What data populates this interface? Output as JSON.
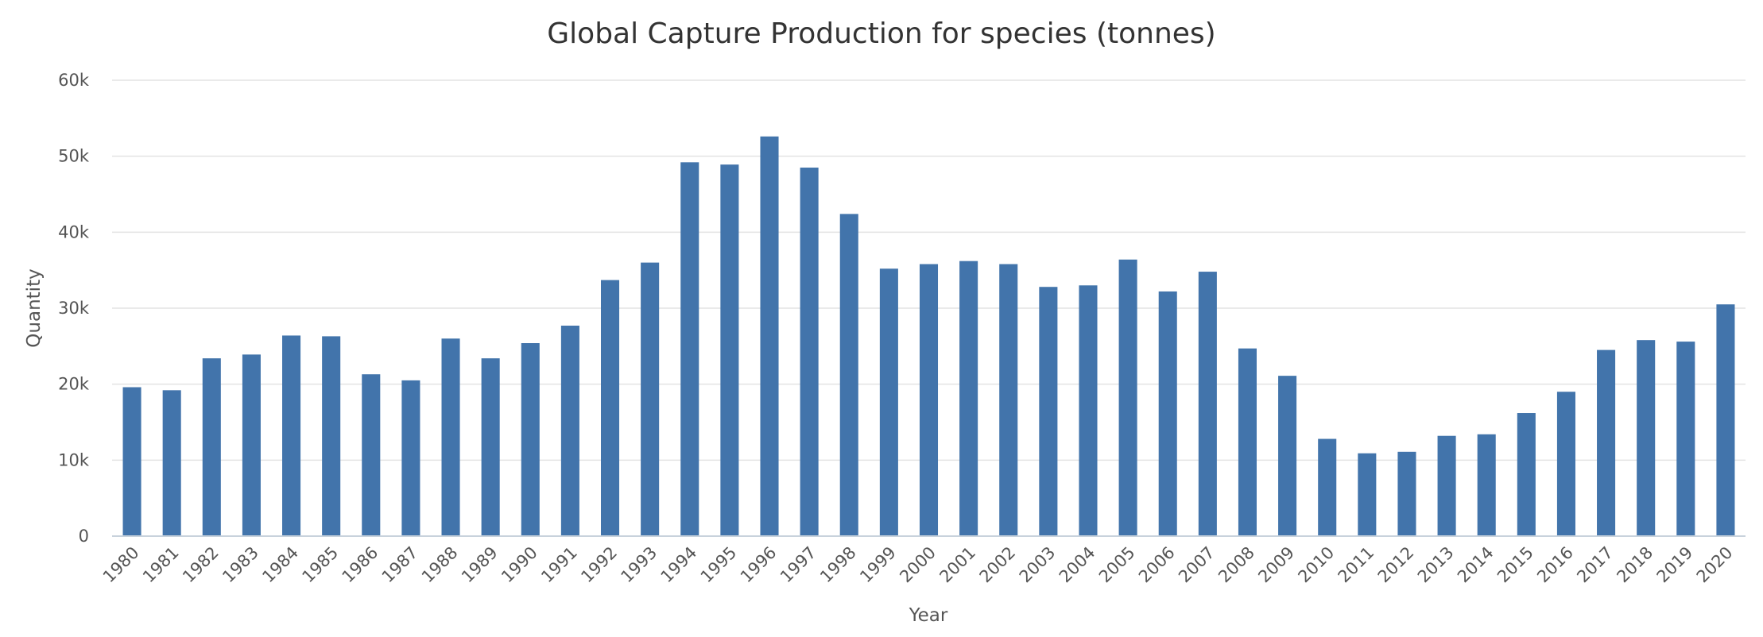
{
  "chart_data": {
    "type": "bar",
    "title": "Global Capture Production for species (tonnes)",
    "xlabel": "Year",
    "ylabel": "Quantity",
    "ylim": [
      0,
      60000
    ],
    "y_ticks": [
      {
        "value": 0,
        "label": "0"
      },
      {
        "value": 10000,
        "label": "10k"
      },
      {
        "value": 20000,
        "label": "20k"
      },
      {
        "value": 30000,
        "label": "30k"
      },
      {
        "value": 40000,
        "label": "40k"
      },
      {
        "value": 50000,
        "label": "50k"
      },
      {
        "value": 60000,
        "label": "60k"
      }
    ],
    "grid": true,
    "bar_color": "#4274ab",
    "categories": [
      "1980",
      "1981",
      "1982",
      "1983",
      "1984",
      "1985",
      "1986",
      "1987",
      "1988",
      "1989",
      "1990",
      "1991",
      "1992",
      "1993",
      "1994",
      "1995",
      "1996",
      "1997",
      "1998",
      "1999",
      "2000",
      "2001",
      "2002",
      "2003",
      "2004",
      "2005",
      "2006",
      "2007",
      "2008",
      "2009",
      "2010",
      "2011",
      "2012",
      "2013",
      "2014",
      "2015",
      "2016",
      "2017",
      "2018",
      "2019",
      "2020"
    ],
    "values": [
      19600,
      19200,
      23400,
      23900,
      26400,
      26300,
      21300,
      20500,
      26000,
      23400,
      25400,
      27700,
      33700,
      36000,
      49200,
      48900,
      52600,
      48500,
      42400,
      35200,
      35800,
      36200,
      35800,
      32800,
      33000,
      36400,
      32200,
      34800,
      24700,
      21100,
      12800,
      10900,
      11100,
      13200,
      13400,
      16200,
      19000,
      24500,
      25800,
      25600,
      30500
    ]
  }
}
